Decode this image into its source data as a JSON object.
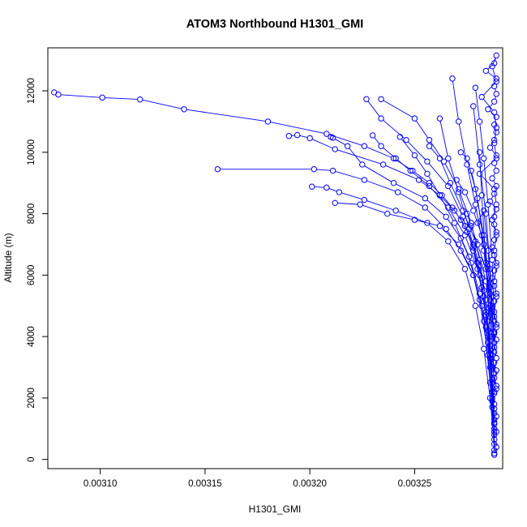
{
  "chart_data": {
    "type": "line",
    "title": "ATOM3 Northbound H1301_GMI",
    "xlabel": "H1301_GMI",
    "ylabel": "Altitude (m)",
    "xlim": [
      0.003075,
      0.003292
    ],
    "ylim": [
      -300,
      13400
    ],
    "x_ticks": [
      {
        "value": 0.0031,
        "label": "0.00310"
      },
      {
        "value": 0.00315,
        "label": "0.00315"
      },
      {
        "value": 0.0032,
        "label": "0.00320"
      },
      {
        "value": 0.00325,
        "label": "0.00325"
      }
    ],
    "y_ticks": [
      {
        "value": 0,
        "label": "0"
      },
      {
        "value": 2000,
        "label": "2000"
      },
      {
        "value": 4000,
        "label": "4000"
      },
      {
        "value": 6000,
        "label": "6000"
      },
      {
        "value": 8000,
        "label": "8000"
      },
      {
        "value": 10000,
        "label": "10000"
      },
      {
        "value": 12000,
        "label": "12000"
      }
    ],
    "grid": false,
    "legend": "none",
    "marker": "open-circle",
    "color": "#0000ff",
    "series": [
      {
        "x": [
          0.003288,
          0.003289,
          0.003288,
          0.003289,
          0.003288,
          0.003289,
          0.003288,
          0.003287,
          0.003288,
          0.003289,
          0.003288,
          0.003289,
          0.003288,
          0.003287,
          0.003288,
          0.003289,
          0.003288,
          0.003289,
          0.003288,
          0.003287,
          0.003288,
          0.003289,
          0.003288,
          0.003287,
          0.003288,
          0.003289,
          0.003288,
          0.003287,
          0.003288,
          0.003289,
          0.003288,
          0.003288,
          0.003289,
          0.003286,
          0.003288,
          0.003289,
          0.003287,
          0.003289,
          0.003288,
          0.003289,
          0.003286,
          0.003288,
          0.003289,
          0.003288,
          0.003289,
          0.003285,
          0.003288,
          0.003289,
          0.003288,
          0.003289,
          0.003284,
          0.003288,
          0.003289,
          0.003287,
          0.003289,
          0.003282,
          0.003288,
          0.003289,
          0.003288,
          0.003289,
          0.003281,
          0.003288,
          0.003289,
          0.003287,
          0.003289,
          0.003288,
          0.003289,
          0.003288,
          0.003289,
          0.003288,
          0.003289,
          0.003288,
          0.003289,
          0.003288,
          0.003289
        ],
        "y": [
          150,
          400,
          650,
          900,
          1150,
          1400,
          1650,
          1900,
          2150,
          2400,
          2650,
          2900,
          3150,
          3400,
          3650,
          3900,
          4150,
          4400,
          4650,
          4900,
          5150,
          5400,
          5650,
          5900,
          6150,
          6400,
          6650,
          6900,
          7150,
          7400,
          7650,
          7900,
          8150,
          8400,
          8650,
          8900,
          9150,
          9400,
          9650,
          9900,
          10150,
          10400,
          10650,
          10900,
          11150,
          11400,
          11650,
          11900,
          12150,
          12400,
          12650,
          12900,
          13150,
          12800,
          12300,
          11800,
          11300,
          10800,
          10300,
          9800,
          9300,
          8800,
          8300,
          7800,
          7300,
          6800,
          6300,
          5800,
          5300,
          4800,
          4300,
          3800,
          3300,
          2800,
          2300
        ]
      },
      {
        "x": [
          0.003288,
          0.003288,
          0.003287,
          0.003287,
          0.003286,
          0.003285,
          0.003284,
          0.003283,
          0.003282,
          0.00328,
          0.003278,
          0.003275,
          0.003272,
          0.003268,
          0.003263,
          0.003257,
          0.003249,
          0.00324,
          0.003226,
          0.003208,
          0.00318,
          0.00314,
          0.003119,
          0.003101,
          0.00308,
          0.003078
        ],
        "y": [
          200,
          900,
          1700,
          2500,
          3300,
          4000,
          4700,
          5300,
          5900,
          6400,
          6900,
          7400,
          7800,
          8200,
          8600,
          9000,
          9400,
          9800,
          10200,
          10600,
          11000,
          11400,
          11720,
          11780,
          11880,
          11950
        ]
      },
      {
        "x": [
          0.003288,
          0.003287,
          0.003286,
          0.003285,
          0.003283,
          0.003281,
          0.003278,
          0.003274,
          0.003269,
          0.003262,
          0.003252,
          0.003235,
          0.003212,
          0.0032,
          0.003194,
          0.00319
        ],
        "y": [
          1000,
          2200,
          3400,
          4500,
          5500,
          6300,
          7000,
          7600,
          8100,
          8600,
          9100,
          9600,
          10100,
          10460,
          10560,
          10530
        ]
      },
      {
        "x": [
          0.003288,
          0.003286,
          0.003284,
          0.003281,
          0.003277,
          0.003272,
          0.003265,
          0.003255,
          0.00324,
          0.003225,
          0.003218,
          0.003211,
          0.00321
        ],
        "y": [
          1500,
          3000,
          4300,
          5400,
          6400,
          7200,
          7900,
          8500,
          9000,
          9600,
          10200,
          10470,
          10500
        ]
      },
      {
        "x": [
          0.003287,
          0.003285,
          0.003282,
          0.003278,
          0.003272,
          0.003265,
          0.003255,
          0.003242,
          0.003226,
          0.003211,
          0.003202,
          0.003156
        ],
        "y": [
          2500,
          3800,
          5000,
          6000,
          6800,
          7500,
          8200,
          8700,
          9100,
          9400,
          9450,
          9450
        ]
      },
      {
        "x": [
          0.003288,
          0.003286,
          0.003283,
          0.003279,
          0.003274,
          0.003266,
          0.003256,
          0.003241,
          0.003226,
          0.003214,
          0.003208,
          0.003201
        ],
        "y": [
          500,
          2000,
          3600,
          5000,
          6200,
          7100,
          7700,
          8100,
          8450,
          8700,
          8850,
          8880
        ]
      },
      {
        "x": [
          0.003288,
          0.003286,
          0.003283,
          0.003278,
          0.003271,
          0.003262,
          0.00325,
          0.003237,
          0.003224,
          0.003212
        ],
        "y": [
          300,
          2500,
          4500,
          6000,
          7000,
          7600,
          7800,
          8000,
          8300,
          8350
        ]
      },
      {
        "x": [
          0.003288,
          0.003287,
          0.003285,
          0.003282,
          0.003278,
          0.003273,
          0.003266,
          0.003256,
          0.003246,
          0.003234,
          0.003227
        ],
        "y": [
          800,
          2600,
          4200,
          5600,
          6800,
          7900,
          8900,
          9700,
          10400,
          11100,
          11730
        ]
      },
      {
        "x": [
          0.003287,
          0.003286,
          0.003284,
          0.003281,
          0.003277,
          0.003271,
          0.003264,
          0.003257,
          0.00325,
          0.003234
        ],
        "y": [
          2000,
          3700,
          5200,
          6500,
          7700,
          8800,
          9700,
          10400,
          11100,
          11730
        ]
      },
      {
        "x": [
          0.003287,
          0.003284,
          0.00328,
          0.003274,
          0.003266,
          0.003257,
          0.003248,
          0.003241,
          0.003234,
          0.00323
        ],
        "y": [
          3000,
          4800,
          6200,
          7300,
          8200,
          8900,
          9400,
          9800,
          10200,
          10550
        ]
      },
      {
        "x": [
          0.003288,
          0.003285,
          0.003281,
          0.003276,
          0.003269,
          0.003262,
          0.003256,
          0.00325,
          0.003243
        ],
        "y": [
          1200,
          3400,
          5200,
          6600,
          7700,
          8600,
          9300,
          9900,
          10500
        ]
      },
      {
        "x": [
          0.003287,
          0.003284,
          0.003279,
          0.003273,
          0.003267,
          0.003262,
          0.003257
        ],
        "y": [
          4000,
          5800,
          7100,
          8100,
          9000,
          9800,
          10200
        ]
      },
      {
        "x": [
          0.003288,
          0.003285,
          0.003281,
          0.003276,
          0.003271,
          0.003266,
          0.003262
        ],
        "y": [
          1800,
          4200,
          6000,
          7500,
          8700,
          9800,
          11100
        ]
      },
      {
        "x": [
          0.003288,
          0.003286,
          0.003283,
          0.003279,
          0.003275,
          0.003271,
          0.003268
        ],
        "y": [
          2800,
          5000,
          6800,
          8300,
          9600,
          11000,
          12400
        ]
      },
      {
        "x": [
          0.003288,
          0.003286,
          0.003283,
          0.003279,
          0.003275,
          0.003272
        ],
        "y": [
          3500,
          5600,
          7300,
          8800,
          9800,
          10000
        ]
      },
      {
        "x": [
          0.003288,
          0.003287,
          0.003285,
          0.003283,
          0.003281,
          0.003279
        ],
        "y": [
          4500,
          6500,
          8300,
          9800,
          11000,
          12100
        ]
      },
      {
        "x": [
          0.003288,
          0.003286,
          0.003284,
          0.003281,
          0.003278
        ],
        "y": [
          3800,
          6200,
          8000,
          9600,
          11500
        ]
      },
      {
        "x": [
          0.003288,
          0.003286,
          0.003283,
          0.00328,
          0.003277
        ],
        "y": [
          2200,
          5200,
          7000,
          8500,
          9400
        ]
      },
      {
        "x": [
          0.003287,
          0.003285,
          0.003282,
          0.003278,
          0.003274,
          0.00327
        ],
        "y": [
          4800,
          6200,
          7300,
          8100,
          8700,
          9100
        ]
      },
      {
        "x": [
          0.003288,
          0.003286,
          0.003284,
          0.003282,
          0.003281
        ],
        "y": [
          1300,
          4000,
          6400,
          8600,
          10000
        ]
      },
      {
        "x": [
          0.003287,
          0.003285,
          0.003283,
          0.00328
        ],
        "y": [
          5000,
          6800,
          8100,
          7700
        ]
      },
      {
        "x": [
          0.003288,
          0.003286,
          0.003284,
          0.00328,
          0.003277,
          0.003275
        ],
        "y": [
          4100,
          5400,
          6200,
          7000,
          7600,
          8000
        ]
      }
    ]
  }
}
